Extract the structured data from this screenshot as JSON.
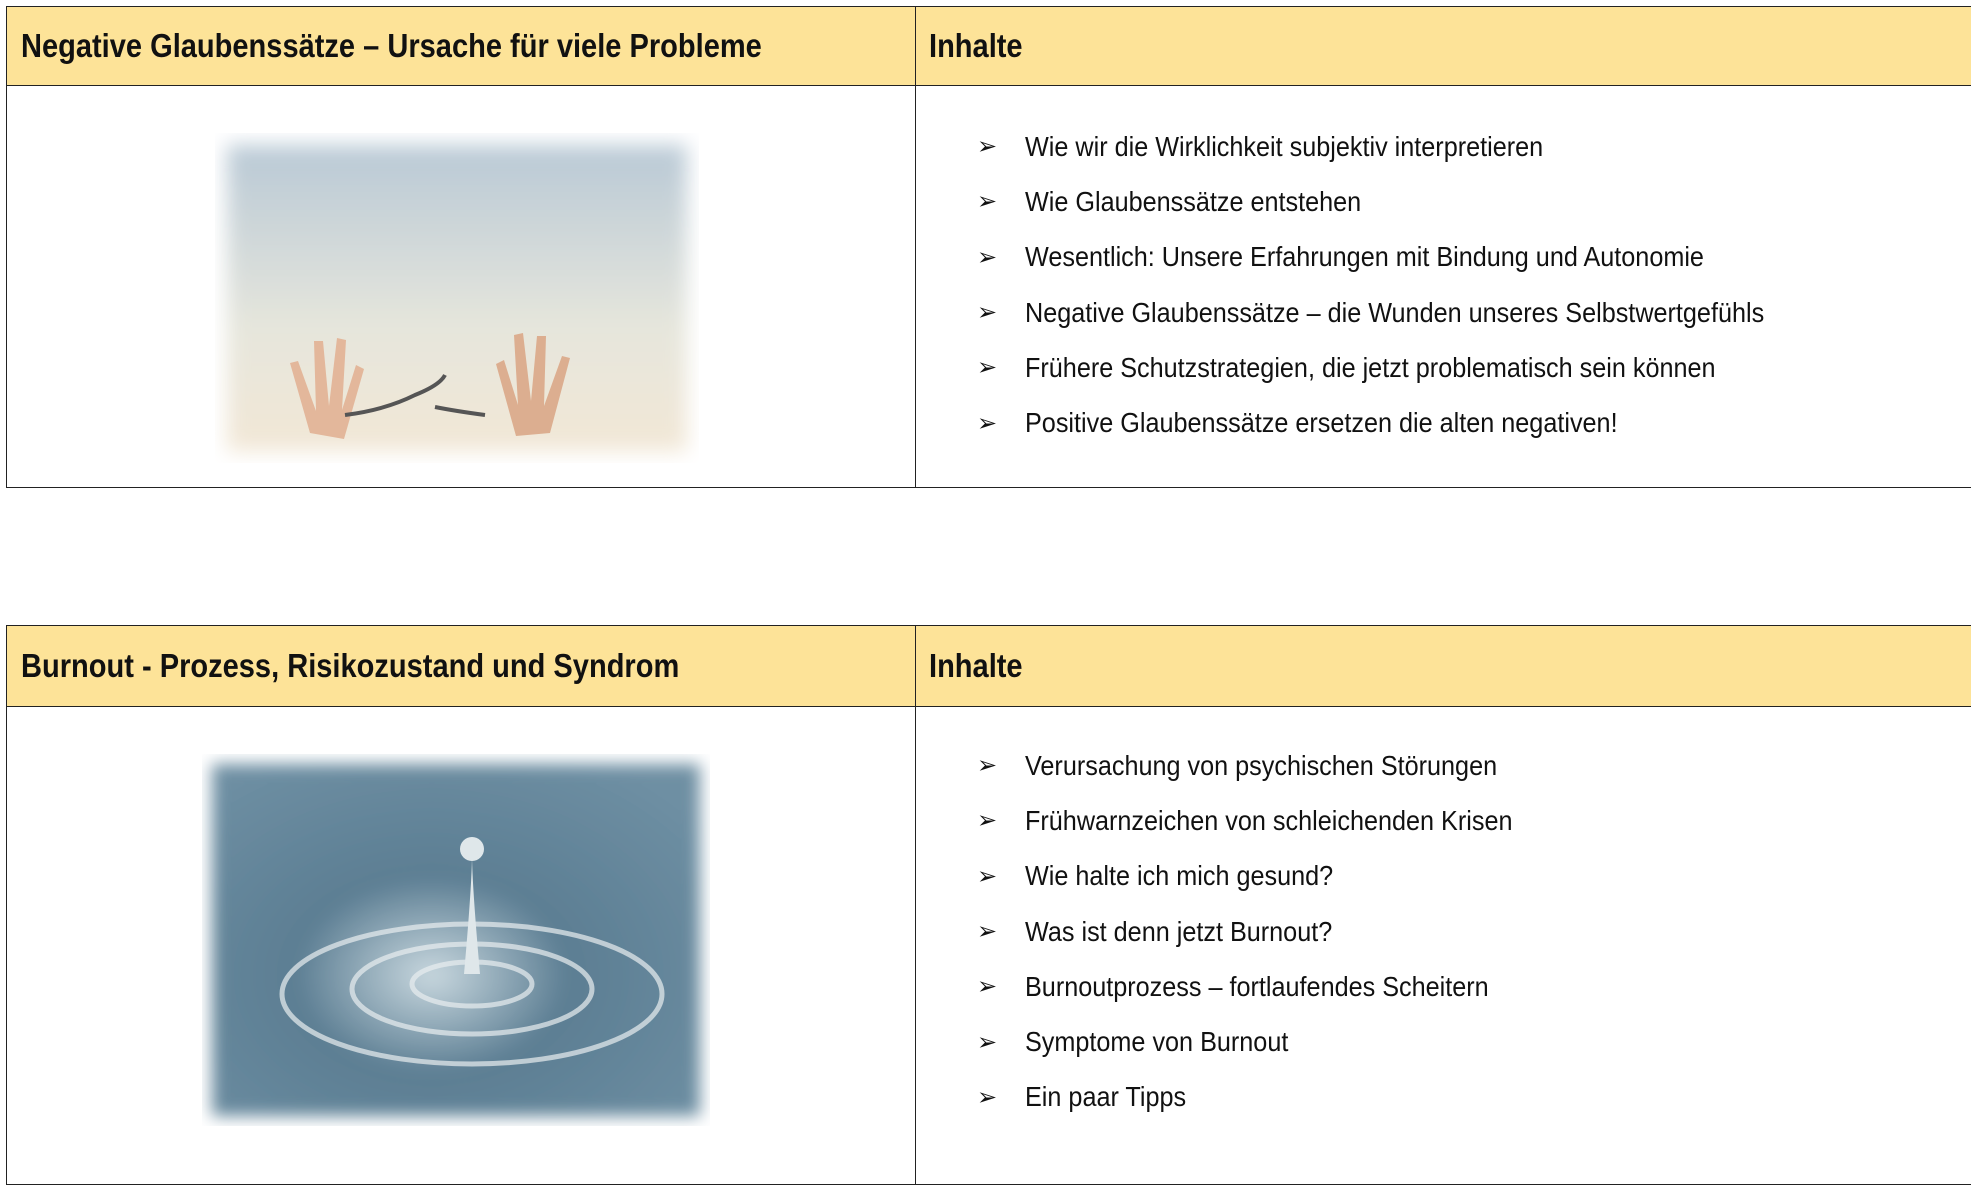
{
  "sections": [
    {
      "title": "Negative Glaubenssätze – Ursache für viele Probleme",
      "contents_heading": "Inhalte",
      "items": [
        "Wie wir die Wirklichkeit subjektiv interpretieren",
        "Wie Glaubenssätze entstehen",
        "Wesentlich: Unsere Erfahrungen mit Bindung und Autonomie",
        "Negative Glaubenssätze – die Wunden unseres Selbstwertgefühls",
        "Frühere Schutzstrategien, die jetzt problematisch sein können",
        "Positive Glaubenssätze ersetzen die alten negativen!"
      ]
    },
    {
      "title": "Burnout - Prozess, Risikozustand und Syndrom",
      "contents_heading": "Inhalte",
      "items": [
        "Verursachung von psychischen Störungen",
        "Frühwarnzeichen von schleichenden Krisen",
        "Wie halte ich mich gesund?",
        "Was ist denn jetzt Burnout?",
        "Burnoutprozess – fortlaufendes Scheitern",
        "Symptome von Burnout",
        "Ein paar Tipps"
      ]
    }
  ]
}
